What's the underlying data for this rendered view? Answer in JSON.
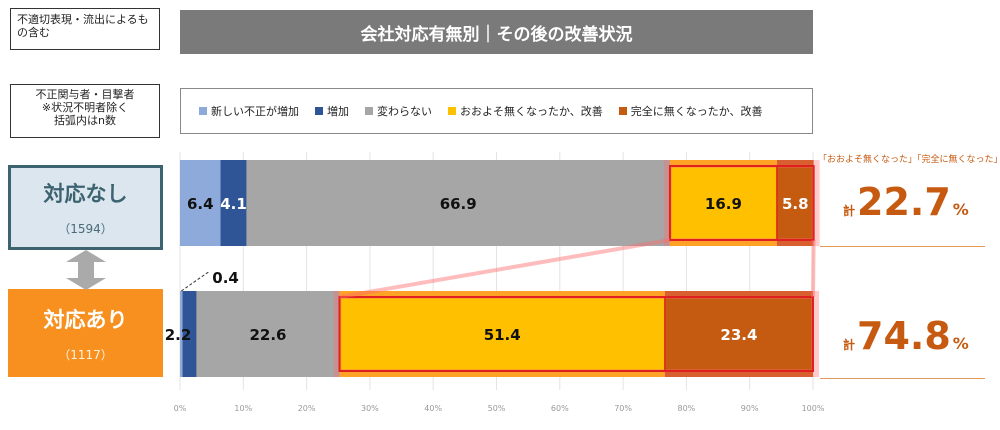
{
  "notes": {
    "scope": "不適切表現・流出によるもの含む",
    "respondents_line1": "不正関与者・目撃者",
    "respondents_line2": "※状況不明者除く",
    "respondents_line3": "括弧内はn数"
  },
  "chart_data": {
    "type": "bar",
    "orientation": "horizontal-stacked-100",
    "title": "会社対応有無別｜その後の改善状況",
    "xlabel": "",
    "ylabel": "",
    "xlim": [
      0,
      100
    ],
    "x_ticks": [
      "0%",
      "10%",
      "20%",
      "30%",
      "40%",
      "50%",
      "60%",
      "70%",
      "80%",
      "90%",
      "100%"
    ],
    "legend_position": "top",
    "legend": [
      {
        "name": "新しい不正が増加",
        "color": "#8eaadb"
      },
      {
        "name": "増加",
        "color": "#2f5597"
      },
      {
        "name": "変わらない",
        "color": "#a6a6a6"
      },
      {
        "name": "おおよそ無くなったか、改善",
        "color": "#ffc000"
      },
      {
        "name": "完全に無くなったか、改善",
        "color": "#c55a11"
      }
    ],
    "categories": [
      {
        "label": "対応なし",
        "n": "（1594）",
        "values": [
          6.4,
          4.1,
          66.9,
          16.9,
          5.8
        ],
        "value_labels": [
          "6.4",
          "4.1",
          "66.9",
          "16.9",
          "5.8"
        ],
        "total_prefix": "計",
        "total_value": "22.7",
        "total_unit": "%"
      },
      {
        "label": "対応あり",
        "n": "（1117）",
        "values": [
          0.4,
          2.2,
          22.6,
          51.4,
          23.4
        ],
        "value_labels": [
          "0.4",
          "2.2",
          "22.6",
          "51.4",
          "23.4"
        ],
        "total_prefix": "計",
        "total_value": "74.8",
        "total_unit": "%"
      }
    ],
    "total_caption": "「おおよそ無くなった」「完全に無くなった」"
  }
}
